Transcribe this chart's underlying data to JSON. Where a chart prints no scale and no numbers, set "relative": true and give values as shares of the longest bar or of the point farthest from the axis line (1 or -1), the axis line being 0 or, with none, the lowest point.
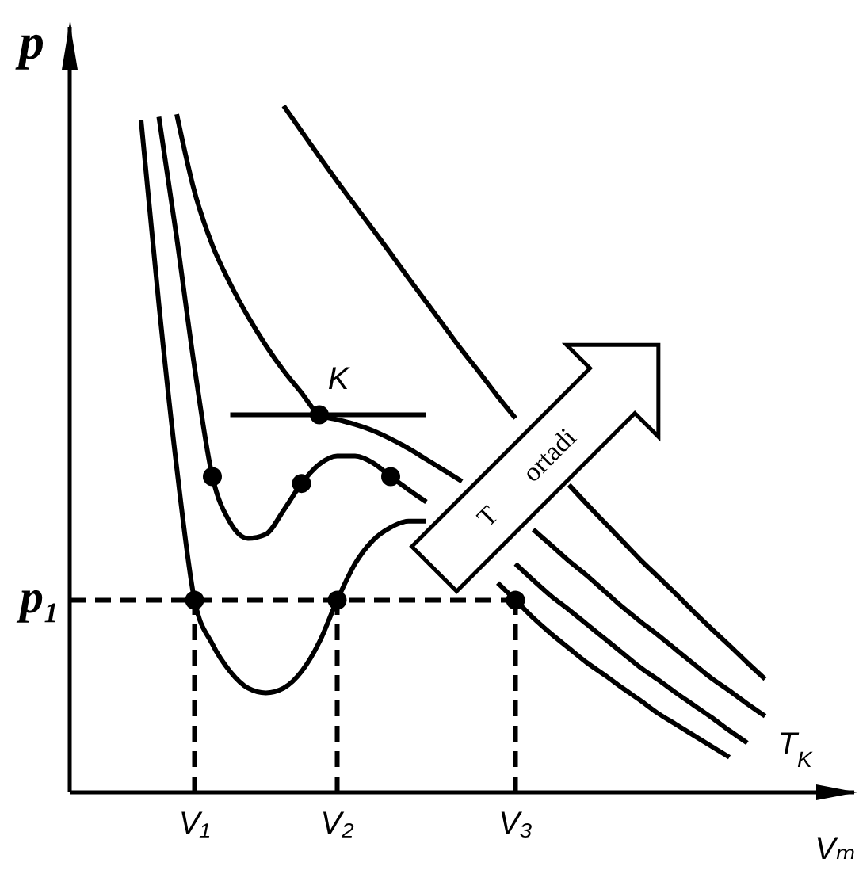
{
  "chart_data": {
    "type": "line",
    "relative": true,
    "xlabel": "Vₘ",
    "ylabel": "p",
    "annotations": [
      "T ortadi"
    ],
    "categories": [
      null,
      null,
      null,
      null,
      null,
      null,
      null,
      "V₁",
      null,
      null,
      null,
      null,
      null,
      null,
      null,
      "V₂",
      null,
      null,
      null,
      null,
      null,
      null,
      null,
      null,
      null,
      "V₃",
      null,
      null,
      null,
      null,
      null,
      null,
      null,
      null,
      null,
      null,
      null,
      null,
      null,
      null,
      null,
      null,
      null,
      null,
      null
    ],
    "series": [
      {
        "color": "#000000",
        "values": [
          null,
          null,
          null,
          null,
          0.979,
          0.711,
          0.473,
          0.28,
          0.216,
          0.176,
          0.152,
          0.145,
          0.152,
          0.176,
          0.219,
          0.28,
          0.333,
          0.367,
          0.386,
          0.395,
          0.395,
          null,
          null,
          null,
          0.305,
          0.28,
          0.254,
          0.231,
          0.21,
          0.189,
          0.171,
          0.152,
          0.134,
          0.115,
          0.099,
          0.083,
          0.067,
          0.051,
          null,
          null,
          null,
          null,
          null,
          null,
          null
        ]
      },
      {
        "color": "#000000",
        "values": [
          null,
          null,
          null,
          null,
          null,
          0.984,
          0.808,
          0.619,
          0.46,
          0.393,
          0.37,
          0.376,
          0.411,
          0.45,
          0.478,
          0.49,
          0.49,
          0.48,
          0.46,
          0.441,
          0.423,
          null,
          null,
          null,
          null,
          0.333,
          0.309,
          0.286,
          0.266,
          0.245,
          0.224,
          0.203,
          0.182,
          0.164,
          0.145,
          0.127,
          0.109,
          0.09,
          0.072,
          null,
          null,
          null,
          null,
          null,
          null
        ]
      },
      {
        "name": "T$_{K}$",
        "color": "#000000",
        "values": [
          null,
          null,
          null,
          null,
          null,
          null,
          0.988,
          0.875,
          0.797,
          0.741,
          0.693,
          0.651,
          0.614,
          0.582,
          0.55,
          0.543,
          0.536,
          0.527,
          0.515,
          0.501,
          0.485,
          0.469,
          0.453,
          null,
          null,
          null,
          0.383,
          0.36,
          0.337,
          0.316,
          0.293,
          0.27,
          0.249,
          0.229,
          0.208,
          0.187,
          0.166,
          0.148,
          0.129,
          0.111,
          null,
          null,
          null,
          null,
          null
        ]
      },
      {
        "color": "#000000",
        "values": [
          null,
          null,
          null,
          null,
          null,
          null,
          null,
          null,
          null,
          null,
          null,
          null,
          1,
          0.963,
          0.926,
          0.89,
          0.855,
          0.82,
          0.785,
          0.749,
          0.714,
          0.679,
          0.644,
          0.611,
          0.577,
          0.545,
          null,
          null,
          0.448,
          0.42,
          0.393,
          0.366,
          0.339,
          0.314,
          0.289,
          0.263,
          0.238,
          0.214,
          0.189,
          0.165,
          null,
          null,
          null,
          null,
          null
        ]
      },
      {
        "type": "line",
        "color": "#000000",
        "values": [
          null,
          null,
          null,
          null,
          null,
          null,
          null,
          null,
          null,
          0.55,
          0.55,
          0.55,
          0.55,
          0.55,
          0.55,
          0.55,
          0.55,
          0.55,
          0.55,
          0.55,
          0.55,
          null,
          null,
          null,
          null,
          null,
          null,
          null,
          null,
          null,
          null,
          null,
          null,
          null,
          null,
          null,
          null,
          null,
          null,
          null,
          null,
          null,
          null,
          null,
          null
        ]
      },
      {
        "type": "line",
        "name": "p₁",
        "color": "#000000",
        "line_style": "dashed",
        "values": [
          0.28,
          0.28,
          0.28,
          0.28,
          0.28,
          0.28,
          0.28,
          0.28,
          0.28,
          0.28,
          0.28,
          0.28,
          0.28,
          0.28,
          0.28,
          0.28,
          0.28,
          0.28,
          0.28,
          0.28,
          0.28,
          0.28,
          0.28,
          0.28,
          0.28,
          0.28,
          null,
          null,
          null,
          null,
          null,
          null,
          null,
          null,
          null,
          null,
          null,
          null,
          null,
          null,
          null,
          null,
          null,
          null,
          null
        ]
      },
      {
        "type": "line",
        "color": "#000000",
        "line_style": "dashed",
        "x": [
          "V₁",
          "V₁"
        ],
        "values": [
          0,
          0.28
        ]
      },
      {
        "type": "line",
        "color": "#000000",
        "line_style": "dashed",
        "x": [
          "V₂",
          "V₂"
        ],
        "values": [
          0,
          0.28
        ]
      },
      {
        "type": "line",
        "color": "#000000",
        "line_style": "dashed",
        "x": [
          "V₃",
          "V₃"
        ],
        "values": [
          0,
          0.28
        ]
      },
      {
        "type": "scatter",
        "color": "#000000",
        "marker": "circle",
        "values": [
          null,
          null,
          null,
          null,
          null,
          null,
          null,
          0.28,
          0.46,
          null,
          null,
          null,
          null,
          0.45,
          null,
          0.28,
          null,
          null,
          0.46,
          null,
          null,
          null,
          null,
          null,
          null,
          0.28,
          null,
          null,
          null,
          null,
          null,
          null,
          null,
          null,
          null,
          null,
          null,
          null,
          null,
          null,
          null,
          null,
          null,
          null,
          null
        ]
      },
      {
        "type": "scatter",
        "name": "K",
        "color": "#000000",
        "marker": "circle",
        "values": [
          null,
          null,
          null,
          null,
          null,
          null,
          null,
          null,
          null,
          null,
          null,
          null,
          null,
          null,
          0.55,
          null,
          null,
          null,
          null,
          null,
          null,
          null,
          null,
          null,
          null,
          null,
          null,
          null,
          null,
          null,
          null,
          null,
          null,
          null,
          null,
          null,
          null,
          null,
          null,
          null,
          null,
          null,
          null,
          null,
          null
        ]
      }
    ]
  }
}
